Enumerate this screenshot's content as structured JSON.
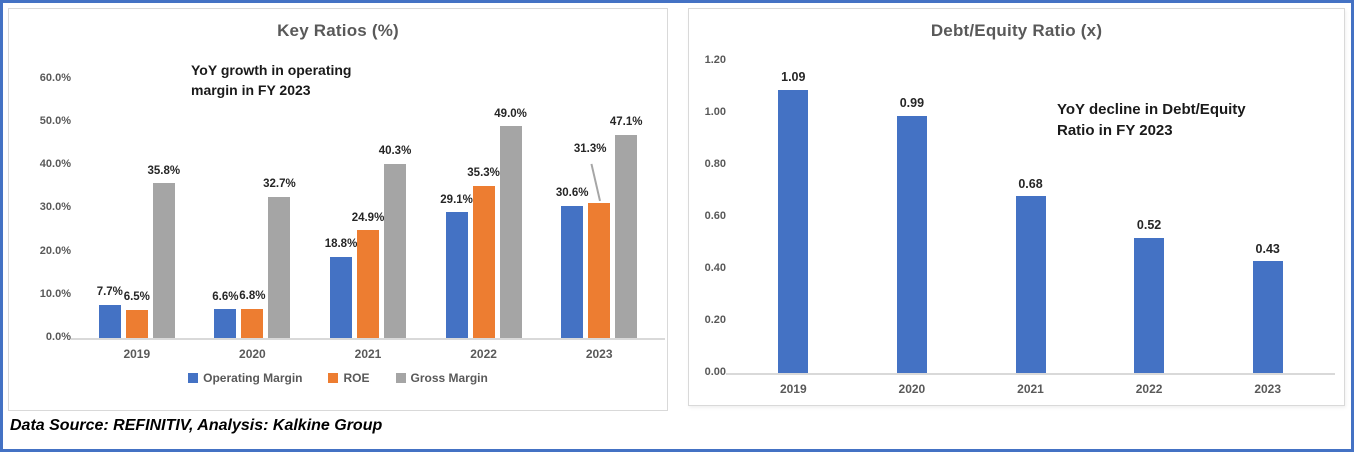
{
  "page": {
    "footer": "Data Source: REFINITIV, Analysis: Kalkine Group",
    "frame_border_color": "#4472C4",
    "panel_border_color": "#D9D9D9"
  },
  "chart_data": [
    {
      "type": "bar",
      "title": "Key Ratios (%)",
      "annotation": "YoY growth in operating margin in FY 2023",
      "categories": [
        "2019",
        "2020",
        "2021",
        "2022",
        "2023"
      ],
      "series": [
        {
          "name": "Operating Margin",
          "color": "#4472C4",
          "values": [
            7.7,
            6.6,
            18.8,
            29.1,
            30.6
          ],
          "labels": [
            "7.7%",
            "6.6%",
            "18.8%",
            "29.1%",
            "30.6%"
          ]
        },
        {
          "name": "ROE",
          "color": "#ED7D31",
          "values": [
            6.5,
            6.8,
            24.9,
            35.3,
            31.3
          ],
          "labels": [
            "6.5%",
            "6.8%",
            "24.9%",
            "35.3%",
            "31.3%"
          ]
        },
        {
          "name": "Gross Margin",
          "color": "#A5A5A5",
          "values": [
            35.8,
            32.7,
            40.3,
            49.0,
            47.1
          ],
          "labels": [
            "35.8%",
            "32.7%",
            "40.3%",
            "49.0%",
            "47.1%"
          ]
        }
      ],
      "ylim": [
        0,
        60
      ],
      "ytick_labels": [
        "0.0%",
        "10.0%",
        "20.0%",
        "30.0%",
        "40.0%",
        "50.0%",
        "60.0%"
      ],
      "grid": false,
      "legend_position": "bottom",
      "label_callout": {
        "series": 1,
        "category": 4
      }
    },
    {
      "type": "bar",
      "title": "Debt/Equity Ratio (x)",
      "annotation": "YoY decline in Debt/Equity Ratio in FY 2023",
      "categories": [
        "2019",
        "2020",
        "2021",
        "2022",
        "2023"
      ],
      "series": [
        {
          "name": "Debt/Equity Ratio",
          "color": "#4472C4",
          "values": [
            1.09,
            0.99,
            0.68,
            0.52,
            0.43
          ],
          "labels": [
            "1.09",
            "0.99",
            "0.68",
            "0.52",
            "0.43"
          ]
        }
      ],
      "ylim": [
        0,
        1.2
      ],
      "ytick_labels": [
        "0.00",
        "0.20",
        "0.40",
        "0.60",
        "0.80",
        "1.00",
        "1.20"
      ],
      "grid": false,
      "legend_position": "none"
    }
  ]
}
